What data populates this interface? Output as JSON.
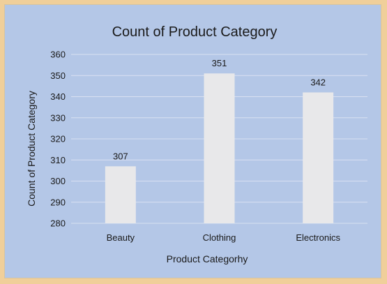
{
  "chart_data": {
    "type": "bar",
    "title": "Count of Product Category",
    "xlabel": "Product Categorhy",
    "ylabel": "Count of Product Category",
    "categories": [
      "Beauty",
      "Clothing",
      "Electronics"
    ],
    "values": [
      307,
      351,
      342
    ],
    "data_labels": [
      "307",
      "351",
      "342"
    ],
    "ylim": [
      280,
      360
    ],
    "yticks": [
      280,
      290,
      300,
      310,
      320,
      330,
      340,
      350,
      360
    ],
    "grid": true,
    "legend": "none"
  },
  "colors": {
    "background": "#b4c7e7",
    "outer_border": "#f0cf9a",
    "bar": "#e8e8ea",
    "gridline": "#d9e1f2"
  }
}
